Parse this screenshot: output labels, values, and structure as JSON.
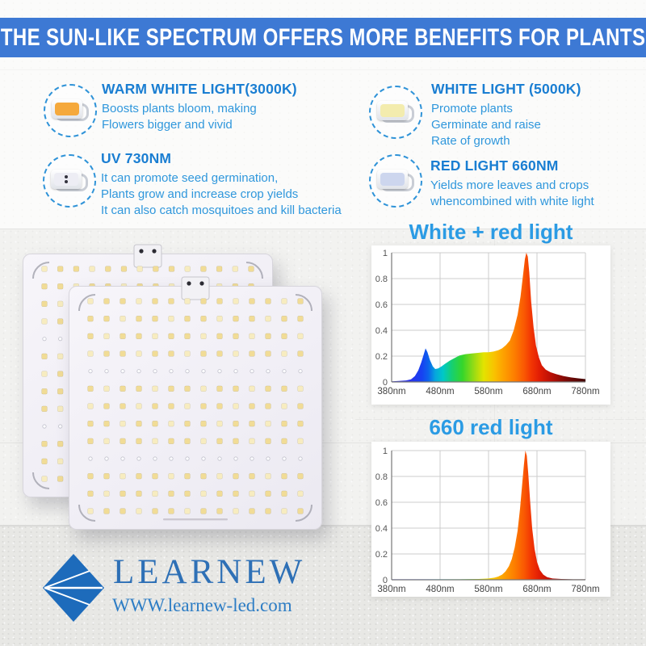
{
  "header": {
    "title": "THE SUN-LIKE SPECTRUM OFFERS MORE BENEFITS FOR PLANTS"
  },
  "features": [
    {
      "icon": "warm-white-led-chip-icon",
      "title": "WARM WHITE LIGHT(3000K)",
      "lines": [
        "Boosts plants bloom, making",
        "Flowers bigger and vivid"
      ]
    },
    {
      "icon": "white-led-chip-icon",
      "title": "WHITE LIGHT (5000K)",
      "lines": [
        "Promote plants",
        "Germinate and raise",
        "Rate of growth"
      ]
    },
    {
      "icon": "uv-led-chip-icon",
      "title": "UV 730NM",
      "lines": [
        "It can promote seed germination,",
        "Plants grow and increase crop yields",
        "It can also catch mosquitoes and kill bacteria"
      ]
    },
    {
      "icon": "red-led-chip-icon",
      "title": "RED LIGHT 660NM",
      "lines": [
        "Yields more leaves and crops",
        "whencombined with white light"
      ]
    }
  ],
  "chart_data": [
    {
      "type": "area",
      "title": "White + red light",
      "xlim": [
        380,
        780
      ],
      "ylim": [
        0,
        1
      ],
      "grid": true,
      "x_ticks": [
        380,
        480,
        580,
        680,
        780
      ],
      "x_tick_labels": [
        "380nm",
        "480nm",
        "580nm",
        "680nm",
        "780nm"
      ],
      "y_ticks": [
        0,
        0.2,
        0.4,
        0.6,
        0.8,
        1
      ],
      "y_tick_labels": [
        "0",
        "0.2",
        "0.4",
        "0.6",
        "0.8",
        "1"
      ],
      "fill": "spectral-gradient",
      "x": [
        380,
        395,
        410,
        420,
        428,
        435,
        441,
        446,
        450,
        454,
        459,
        465,
        470,
        476,
        483,
        490,
        500,
        510,
        520,
        532,
        545,
        558,
        570,
        580,
        590,
        600,
        608,
        616,
        624,
        632,
        640,
        646,
        651,
        655,
        658,
        661,
        664,
        668,
        673,
        678,
        684,
        690,
        698,
        708,
        720,
        735,
        750,
        765,
        780
      ],
      "y": [
        0.005,
        0.008,
        0.012,
        0.02,
        0.045,
        0.09,
        0.15,
        0.21,
        0.26,
        0.23,
        0.17,
        0.12,
        0.1,
        0.105,
        0.12,
        0.14,
        0.165,
        0.185,
        0.205,
        0.215,
        0.22,
        0.225,
        0.23,
        0.23,
        0.235,
        0.245,
        0.26,
        0.285,
        0.32,
        0.4,
        0.52,
        0.66,
        0.82,
        0.95,
        1.0,
        0.97,
        0.85,
        0.62,
        0.42,
        0.28,
        0.19,
        0.13,
        0.095,
        0.075,
        0.06,
        0.045,
        0.035,
        0.028,
        0.022
      ]
    },
    {
      "type": "area",
      "title": "660 red light",
      "xlim": [
        380,
        780
      ],
      "ylim": [
        0,
        1
      ],
      "grid": true,
      "x_ticks": [
        380,
        480,
        580,
        680,
        780
      ],
      "x_tick_labels": [
        "380nm",
        "480nm",
        "580nm",
        "680nm",
        "780nm"
      ],
      "y_ticks": [
        0,
        0.2,
        0.4,
        0.6,
        0.8,
        1
      ],
      "y_tick_labels": [
        "0",
        "0.2",
        "0.4",
        "0.6",
        "0.8",
        "1"
      ],
      "fill": "spectral-gradient",
      "x": [
        380,
        450,
        520,
        560,
        580,
        592,
        600,
        608,
        615,
        622,
        628,
        634,
        640,
        645,
        649,
        653,
        656,
        659,
        662,
        666,
        670,
        675,
        680,
        686,
        693,
        701,
        712,
        730,
        755,
        780
      ],
      "y": [
        0.004,
        0.004,
        0.004,
        0.006,
        0.01,
        0.016,
        0.025,
        0.04,
        0.065,
        0.105,
        0.16,
        0.25,
        0.38,
        0.55,
        0.72,
        0.89,
        1.0,
        0.96,
        0.82,
        0.6,
        0.4,
        0.24,
        0.14,
        0.075,
        0.04,
        0.02,
        0.01,
        0.006,
        0.004,
        0.004
      ]
    }
  ],
  "footer": {
    "brand": "LEARNEW",
    "website": "WWW.learnew-led.com",
    "logo_icon": "blue-diamond-gem-icon"
  },
  "colors": {
    "banner_bg": "#3d79d4",
    "feature_title": "#1a7ed2",
    "feature_text": "#2f97dc",
    "chart_title": "#2b9be4",
    "brand_blue": "#2e70b6",
    "warm_core": "#f5a93c",
    "white_core": "#f3ecae",
    "uv_core": "#ededf4",
    "red_core": "#cdd6ee",
    "panel_body": "#f3f1f7",
    "led_dot": "#f1dc96"
  }
}
